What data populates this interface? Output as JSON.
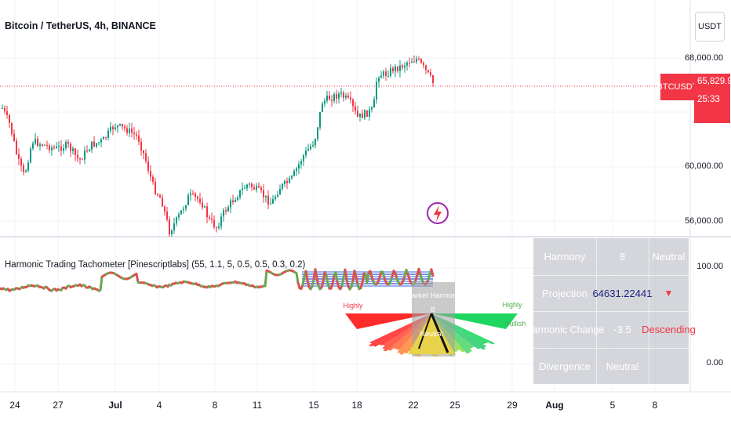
{
  "chart": {
    "title": "Bitcoin / TetherUS, 4h, BINANCE",
    "currency_button": "USDT"
  },
  "price_axis": {
    "labels": [
      "68,000.00",
      "60,000.00",
      "56,000.00"
    ],
    "symbol_tag": "BTCUSDT",
    "current_price": "65,829.93",
    "countdown": "25:33"
  },
  "indicator": {
    "title": "Harmonic Trading Tachometer [Pinescriptlabs] (55, 1.1, 5, 0.5, 0.5, 0.3, 0.2)",
    "axis_labels": [
      "100.00",
      "0.00"
    ],
    "gauge": {
      "left_label": "Highly",
      "right_label_1": "Highly",
      "right_label_2": "Bullish",
      "center_title": "Market Harmony",
      "center_value": "8",
      "center_state": "Neutral"
    }
  },
  "table": {
    "rows": [
      {
        "label": "Harmony",
        "value": "8",
        "status": "Neutral"
      },
      {
        "label": "Projection",
        "value": "64631.22441",
        "status": "▼"
      },
      {
        "label": "Harmonic Change",
        "value": "-3.5",
        "status": "Descending"
      },
      {
        "label": "Divergence",
        "value": "Neutral",
        "status": ""
      }
    ],
    "colors": {
      "projection_value": "#1a237e",
      "down_arrow": "#f23645",
      "descending": "#f23645"
    }
  },
  "time_axis": {
    "labels": [
      "24",
      "27",
      "Jul",
      "4",
      "8",
      "11",
      "15",
      "18",
      "22",
      "25",
      "29",
      "Aug",
      "5",
      "8"
    ]
  },
  "colors": {
    "up": "#089981",
    "down": "#f23645",
    "grid": "#f0f3fa"
  }
}
